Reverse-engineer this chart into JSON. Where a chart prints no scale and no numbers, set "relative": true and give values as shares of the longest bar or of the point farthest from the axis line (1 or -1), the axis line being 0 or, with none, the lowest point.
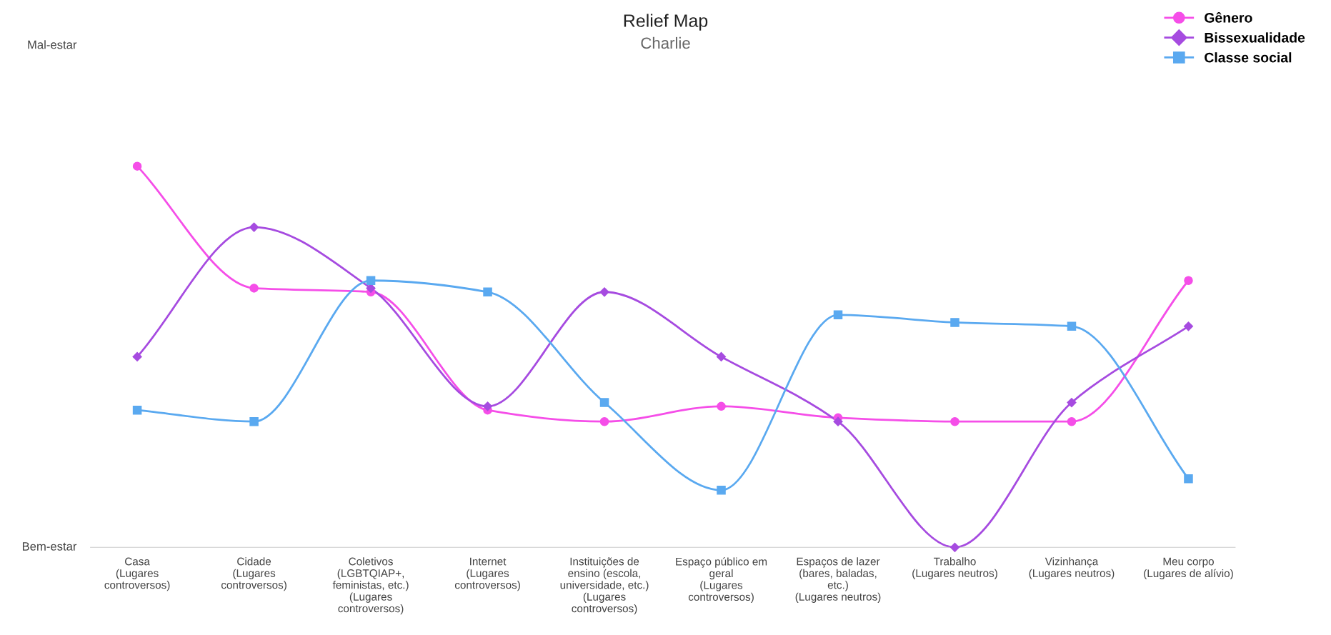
{
  "chart_data": {
    "type": "line",
    "title": "Relief Map",
    "subtitle": "Charlie",
    "categories": [
      "Casa\n(Lugares\ncontroversos)",
      "Cidade\n(Lugares\ncontroversos)",
      "Coletivos\n(LGBTQIAP+,\nfeministas, etc.)\n(Lugares\ncontroversos)",
      "Internet\n(Lugares\ncontroversos)",
      "Instituições de\nensino (escola,\nuniversidade, etc.)\n(Lugares\ncontroversos)",
      "Espaço público em\ngeral\n(Lugares\ncontroversos)",
      "Espaços de lazer\n(bares, baladas,\netc.)\n(Lugares neutros)",
      "Trabalho\n(Lugares neutros)",
      "Vizinhança\n(Lugares neutros)",
      "Meu corpo\n(Lugares de alívio)"
    ],
    "series": [
      {
        "name": "Gênero",
        "color": "#f54ee8",
        "marker": "circle",
        "values": [
          1,
          0.68,
          0.67,
          0.36,
          0.33,
          0.37,
          0.34,
          0.33,
          0.33,
          0.7
        ]
      },
      {
        "name": "Bissexualidade",
        "color": "#a64be0",
        "marker": "diamond",
        "values": [
          0.5,
          0.84,
          0.68,
          0.37,
          0.67,
          0.5,
          0.33,
          0,
          0.38,
          0.58
        ]
      },
      {
        "name": "Classe social",
        "color": "#5aa9f0",
        "marker": "square",
        "values": [
          0.36,
          0.33,
          0.7,
          0.67,
          0.38,
          0.15,
          0.61,
          0.59,
          0.58,
          0.18
        ]
      }
    ],
    "relative": true,
    "annotations": [
      "Mal-estar",
      "Bem-estar"
    ],
    "grid": false,
    "legend": "top right",
    "line_style": "solid"
  }
}
